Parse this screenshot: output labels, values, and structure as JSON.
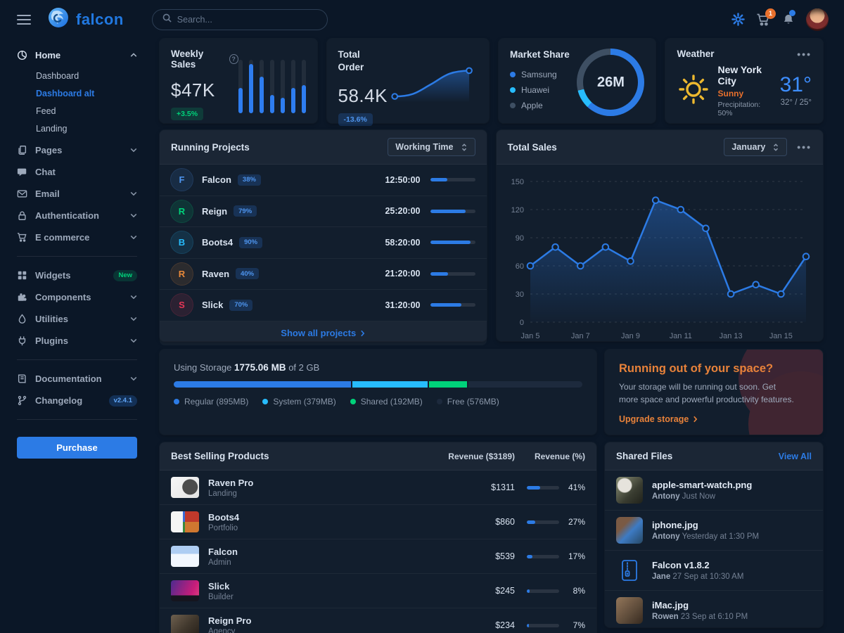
{
  "topbar": {
    "brand": "falcon",
    "search_placeholder": "Search...",
    "cart_badge": "1"
  },
  "sidebar": {
    "groups": [
      {
        "items": [
          {
            "label": "Home",
            "icon": "chart-pie-icon",
            "chevron": "up",
            "lit": true,
            "children": [
              {
                "label": "Dashboard",
                "active": false
              },
              {
                "label": "Dashboard alt",
                "active": true
              },
              {
                "label": "Feed",
                "active": false
              },
              {
                "label": "Landing",
                "active": false
              }
            ]
          },
          {
            "label": "Pages",
            "icon": "pages-icon",
            "chevron": "down"
          },
          {
            "label": "Chat",
            "icon": "chat-icon"
          },
          {
            "label": "Email",
            "icon": "email-icon",
            "chevron": "down"
          },
          {
            "label": "Authentication",
            "icon": "lock-icon",
            "chevron": "down"
          },
          {
            "label": "E commerce",
            "icon": "cart-icon",
            "chevron": "down"
          }
        ]
      },
      {
        "items": [
          {
            "label": "Widgets",
            "icon": "widgets-icon",
            "badge": {
              "text": "New",
              "color": "green"
            }
          },
          {
            "label": "Components",
            "icon": "puzzle-icon",
            "chevron": "down"
          },
          {
            "label": "Utilities",
            "icon": "utilities-icon",
            "chevron": "down"
          },
          {
            "label": "Plugins",
            "icon": "plug-icon",
            "chevron": "down"
          }
        ]
      },
      {
        "items": [
          {
            "label": "Documentation",
            "icon": "book-icon",
            "chevron": "down"
          },
          {
            "label": "Changelog",
            "icon": "branch-icon",
            "badge": {
              "text": "v2.4.1",
              "color": "blue"
            }
          }
        ]
      }
    ],
    "purchase_label": "Purchase"
  },
  "weekly_sales": {
    "title": "Weekly Sales",
    "value": "$47K",
    "badge": "+3.5%",
    "chart_data": {
      "type": "bar",
      "values": [
        43,
        83,
        61,
        31,
        26,
        43,
        48
      ],
      "ylim": [
        0,
        90
      ]
    }
  },
  "total_order": {
    "title": "Total Order",
    "value": "58.4K",
    "badge": "-13.6%"
  },
  "market_share": {
    "title": "Market Share",
    "center": "26M",
    "chart_data": {
      "type": "pie",
      "segments": [
        {
          "label": "Samsung",
          "color": "#2c7be5",
          "pct": 62
        },
        {
          "label": "Huawei",
          "color": "#27bcfd",
          "pct": 9
        },
        {
          "label": "Apple",
          "color": "#3e4f63",
          "pct": 29
        }
      ]
    }
  },
  "weather": {
    "title": "Weather",
    "city": "New York City",
    "condition": "Sunny",
    "precipitation": "Precipitation: 50%",
    "temp": "31°",
    "range": "32° / 25°"
  },
  "running_projects": {
    "title": "Running Projects",
    "select_value": "Working Time",
    "footer_link": "Show all projects",
    "rows": [
      {
        "initial": "F",
        "color": "#4e95ef",
        "name": "Falcon",
        "badge": "38%",
        "time": "12:50:00",
        "pct": 38
      },
      {
        "initial": "R",
        "color": "#00d27a",
        "name": "Reign",
        "badge": "79%",
        "time": "25:20:00",
        "pct": 79
      },
      {
        "initial": "B",
        "color": "#27bcfd",
        "name": "Boots4",
        "badge": "90%",
        "time": "58:20:00",
        "pct": 90
      },
      {
        "initial": "R",
        "color": "#e8893a",
        "name": "Raven",
        "badge": "40%",
        "time": "21:20:00",
        "pct": 40
      },
      {
        "initial": "S",
        "color": "#e63757",
        "name": "Slick",
        "badge": "70%",
        "time": "31:20:00",
        "pct": 70
      }
    ]
  },
  "total_sales": {
    "title": "Total Sales",
    "select_value": "January",
    "chart_data": {
      "type": "line",
      "x": [
        "Jan 5",
        "Jan 6",
        "Jan 7",
        "Jan 8",
        "Jan 9",
        "Jan 10",
        "Jan 11",
        "Jan 12",
        "Jan 13",
        "Jan 14",
        "Jan 15",
        "Jan 16"
      ],
      "values": [
        60,
        80,
        60,
        80,
        65,
        130,
        120,
        100,
        30,
        40,
        30,
        70
      ],
      "x_tick_every": 2,
      "yticks": [
        0,
        30,
        60,
        90,
        120,
        150
      ],
      "ylim": [
        0,
        150
      ],
      "grid": "dashed",
      "line_color": "#2c7be5"
    }
  },
  "storage": {
    "label_prefix": "Using Storage",
    "used": "1775.06 MB",
    "label_suffix": "of 2 GB",
    "total_mb": 2048,
    "segments": [
      {
        "label": "Regular (895MB)",
        "color": "#2c7be5",
        "mb": 895
      },
      {
        "label": "System (379MB)",
        "color": "#27bcfd",
        "mb": 379
      },
      {
        "label": "Shared (192MB)",
        "color": "#00d27a",
        "mb": 192
      },
      {
        "label": "Free (576MB)",
        "color": "#1d2a3d",
        "mb": 576
      }
    ]
  },
  "space_cta": {
    "title": "Running out of your space?",
    "body": "Your storage will be running out soon. Get more space and powerful productivity features.",
    "link": "Upgrade storage"
  },
  "best_selling": {
    "title": "Best Selling Products",
    "col_revenue": "Revenue ($3189)",
    "col_pct": "Revenue (%)",
    "rows": [
      {
        "name": "Raven Pro",
        "category": "Landing",
        "revenue": "$1311",
        "pct": 41,
        "thumb": "raven-pro"
      },
      {
        "name": "Boots4",
        "category": "Portfolio",
        "revenue": "$860",
        "pct": 27,
        "thumb": "boots4"
      },
      {
        "name": "Falcon",
        "category": "Admin",
        "revenue": "$539",
        "pct": 17,
        "thumb": "falcon"
      },
      {
        "name": "Slick",
        "category": "Builder",
        "revenue": "$245",
        "pct": 8,
        "thumb": "slick"
      },
      {
        "name": "Reign Pro",
        "category": "Agency",
        "revenue": "$234",
        "pct": 7,
        "thumb": "reign-pro"
      }
    ]
  },
  "shared_files": {
    "title": "Shared Files",
    "link": "View All",
    "rows": [
      {
        "name": "apple-smart-watch.png",
        "author": "Antony",
        "time": "Just Now",
        "thumb": "watch"
      },
      {
        "name": "iphone.jpg",
        "author": "Antony",
        "time": "Yesterday at 1:30 PM",
        "thumb": "iphone"
      },
      {
        "name": "Falcon v1.8.2",
        "author": "Jane",
        "time": "27 Sep at 10:30 AM",
        "thumb": "zip"
      },
      {
        "name": "iMac.jpg",
        "author": "Rowen",
        "time": "23 Sep at 6:10 PM",
        "thumb": "imac"
      }
    ]
  }
}
